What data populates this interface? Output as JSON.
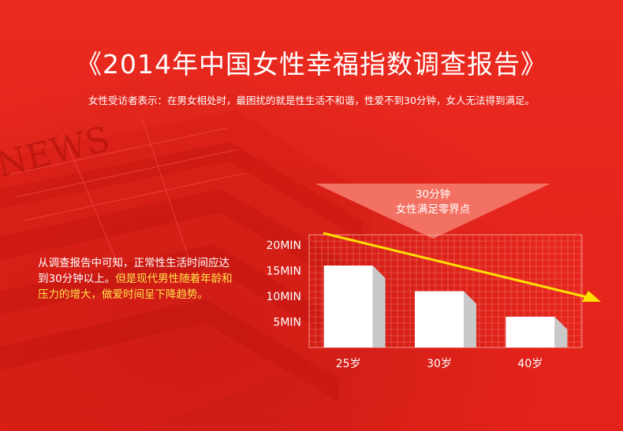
{
  "header": {
    "title": "《2014年中国女性幸福指数调查报告》",
    "subtitle": "女性受访者表示：在男女相处时，最困扰的就是性生活不和谐，性爱不到30分钟，女人无法得到满足。"
  },
  "left_text": {
    "normal": "从调查报告中可知，正常性生活时间应达到30分钟以上。",
    "highlight": "但是现代男性随着年龄和压力的增大，做爱时间呈下降趋势。"
  },
  "callout": {
    "line1": "30分钟",
    "line2": "女性满足零界点"
  },
  "colors": {
    "background": "#e5231b",
    "grid": "#f9a9a0",
    "bar": "#ffffff",
    "trend_arrow": "#ffe000",
    "highlight_text": "#ffe24a",
    "callout": "#f47a6b"
  },
  "chart_data": {
    "type": "bar",
    "categories": [
      "25岁",
      "30岁",
      "40岁"
    ],
    "values": [
      16,
      11,
      6
    ],
    "yticks": [
      "5MIN",
      "10MIN",
      "15MIN",
      "20MIN"
    ],
    "ytick_values": [
      5,
      10,
      15,
      20
    ],
    "ylim": [
      0,
      22
    ],
    "grid": true,
    "trend": "downward arrow"
  }
}
